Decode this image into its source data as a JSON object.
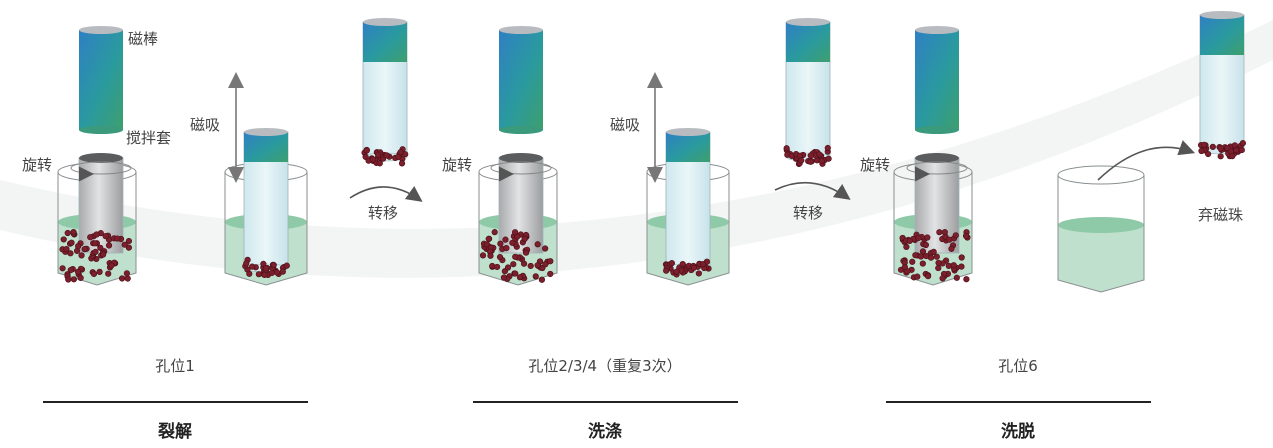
{
  "labels": {
    "magnetic_rod": "磁棒",
    "stir_sleeve": "搅拌套",
    "rotate": "旋转",
    "magnetic_attract": "磁吸",
    "transfer": "转移",
    "discard_beads": "弃磁珠"
  },
  "sections": [
    {
      "well": "孔位1",
      "step": "裂解"
    },
    {
      "well": "孔位2/3/4（重复3次）",
      "step": "洗涤"
    },
    {
      "well": "孔位6",
      "step": "洗脱"
    }
  ],
  "colors": {
    "liquid": "#bfe0cc",
    "liquid_top": "#8fcaa8",
    "bead": "#7a1f2b",
    "rod_top": "#b8bcc0",
    "arrow": "#555555",
    "arc": "#f2f3f3"
  },
  "icons": [
    "magnetic-rod",
    "stir-sleeve",
    "beaker",
    "magnetic-beads",
    "arrow"
  ]
}
